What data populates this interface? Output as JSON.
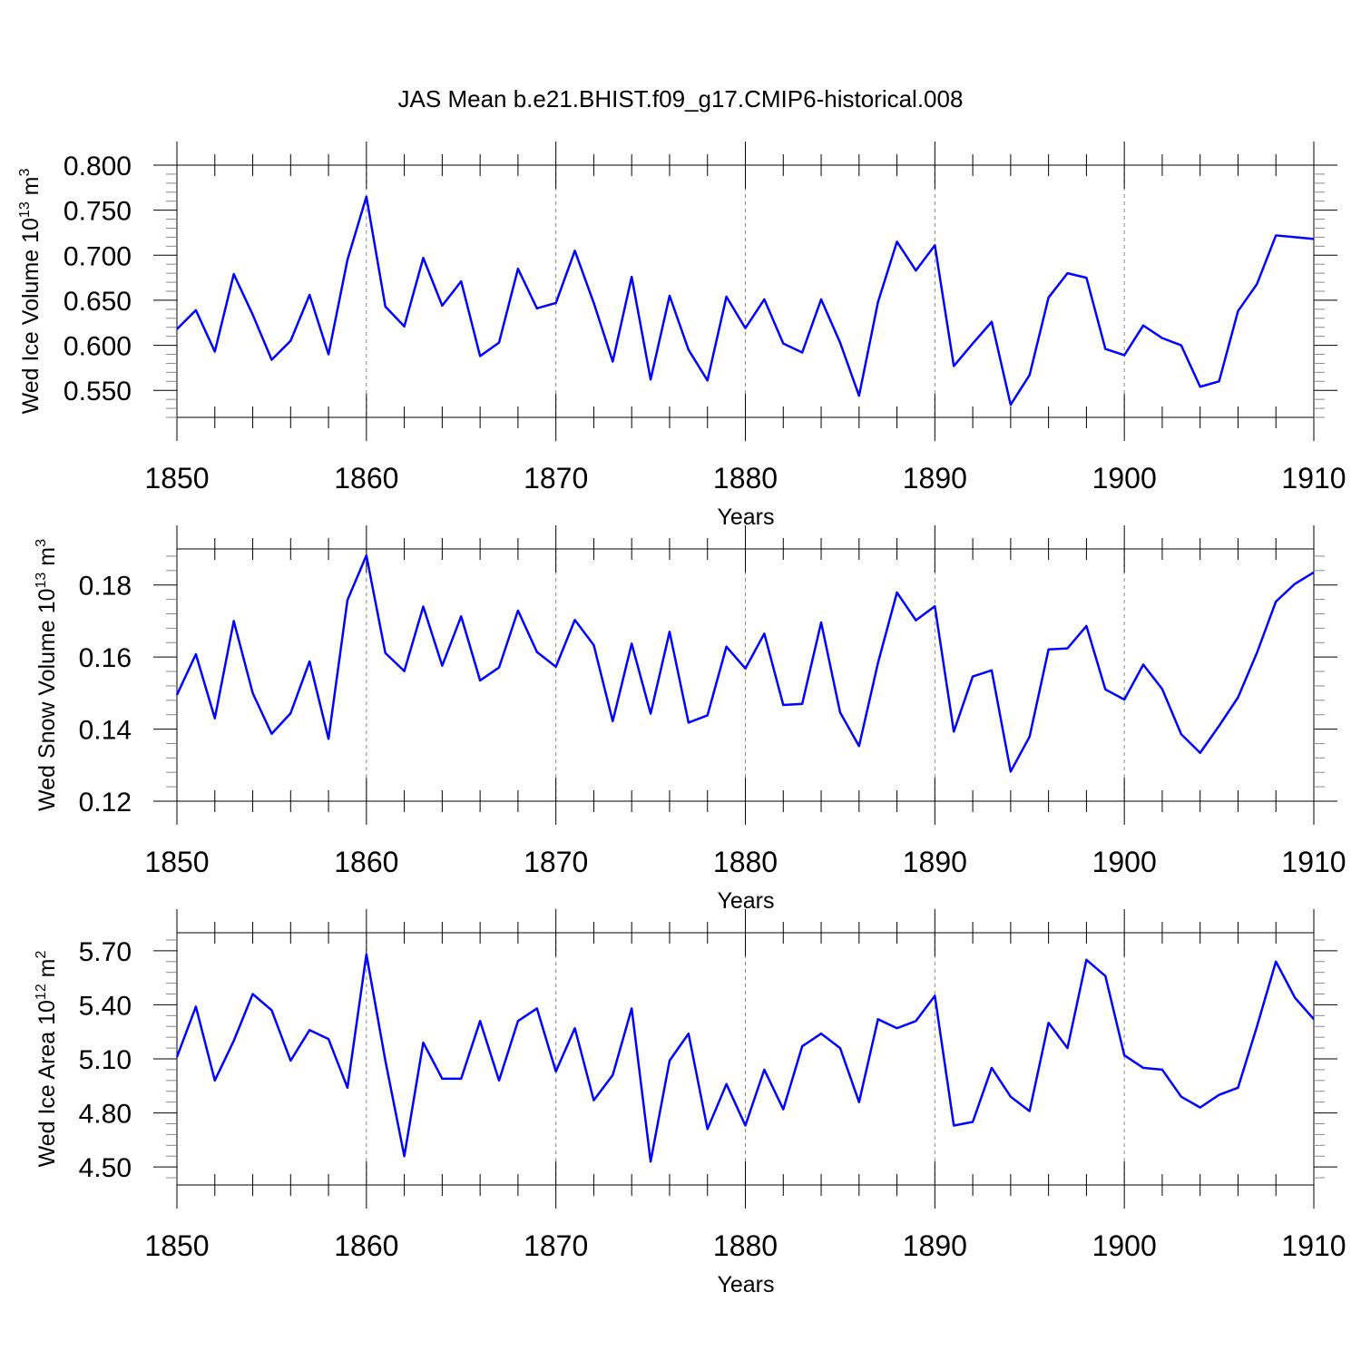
{
  "title": "JAS Mean b.e21.BHIST.f09_g17.CMIP6-historical.008",
  "colors": {
    "line": "#0000ff",
    "axis": "#000000",
    "grid": "#888888"
  },
  "chart_data": [
    {
      "type": "line",
      "ylabel_main": "Wed Ice Volume 10",
      "ylabel_exp": "13",
      "ylabel_unit": " m",
      "ylabel_unit_exp": "3",
      "xlabel": "Years",
      "xlim": [
        1850,
        1910
      ],
      "ylim": [
        0.52,
        0.8
      ],
      "yticks": [
        0.55,
        0.6,
        0.65,
        0.7,
        0.75,
        0.8
      ],
      "ytick_labels": [
        "0.550",
        "0.600",
        "0.650",
        "0.700",
        "0.750",
        "0.800"
      ],
      "xticks": [
        1850,
        1860,
        1870,
        1880,
        1890,
        1900,
        1910
      ],
      "xtick_labels": [
        "1850",
        "1860",
        "1870",
        "1880",
        "1890",
        "1900",
        "1910"
      ],
      "start_year": 1850,
      "values": [
        0.618,
        0.639,
        0.593,
        0.679,
        0.634,
        0.584,
        0.605,
        0.656,
        0.59,
        0.695,
        0.765,
        0.643,
        0.621,
        0.697,
        0.644,
        0.671,
        0.588,
        0.603,
        0.685,
        0.641,
        0.647,
        0.705,
        0.647,
        0.582,
        0.676,
        0.562,
        0.655,
        0.595,
        0.561,
        0.654,
        0.619,
        0.651,
        0.602,
        0.592,
        0.651,
        0.603,
        0.544,
        0.648,
        0.715,
        0.683,
        0.711,
        0.577,
        0.602,
        0.626,
        0.534,
        0.567,
        0.653,
        0.68,
        0.675,
        0.596,
        0.589,
        0.622,
        0.608,
        0.6,
        0.554,
        0.56,
        0.638,
        0.668,
        0.722,
        0.72,
        0.718
      ]
    },
    {
      "type": "line",
      "ylabel_main": "Wed Snow Volume 10",
      "ylabel_exp": "13",
      "ylabel_unit": " m",
      "ylabel_unit_exp": "3",
      "xlabel": "Years",
      "xlim": [
        1850,
        1910
      ],
      "ylim": [
        0.12,
        0.19
      ],
      "yticks": [
        0.12,
        0.14,
        0.16,
        0.18
      ],
      "ytick_labels": [
        "0.12",
        "0.14",
        "0.16",
        "0.18"
      ],
      "xticks": [
        1850,
        1860,
        1870,
        1880,
        1890,
        1900,
        1910
      ],
      "xtick_labels": [
        "1850",
        "1860",
        "1870",
        "1880",
        "1890",
        "1900",
        "1910"
      ],
      "start_year": 1850,
      "values": [
        0.1495,
        0.1608,
        0.143,
        0.17,
        0.15,
        0.1387,
        0.1444,
        0.1588,
        0.1373,
        0.1758,
        0.1882,
        0.1611,
        0.1561,
        0.174,
        0.1576,
        0.1713,
        0.1535,
        0.1571,
        0.1729,
        0.1614,
        0.1573,
        0.1703,
        0.1633,
        0.1422,
        0.1637,
        0.1443,
        0.167,
        0.1418,
        0.1438,
        0.1629,
        0.1568,
        0.1665,
        0.1467,
        0.147,
        0.1696,
        0.1446,
        0.1353,
        0.1584,
        0.1779,
        0.1702,
        0.1741,
        0.1393,
        0.1546,
        0.1563,
        0.1282,
        0.1379,
        0.1621,
        0.1624,
        0.1686,
        0.151,
        0.1482,
        0.1579,
        0.1511,
        0.1386,
        0.1334,
        0.1409,
        0.1488,
        0.1612,
        0.1754,
        0.1803,
        0.1835
      ]
    },
    {
      "type": "line",
      "ylabel_main": "Wed Ice Area 10",
      "ylabel_exp": "12",
      "ylabel_unit": " m",
      "ylabel_unit_exp": "2",
      "xlabel": "Years",
      "xlim": [
        1850,
        1910
      ],
      "ylim": [
        4.4,
        5.8
      ],
      "yticks": [
        4.5,
        4.8,
        5.1,
        5.4,
        5.7
      ],
      "ytick_labels": [
        "4.50",
        "4.80",
        "5.10",
        "5.40",
        "5.70"
      ],
      "xticks": [
        1850,
        1860,
        1870,
        1880,
        1890,
        1900,
        1910
      ],
      "xtick_labels": [
        "1850",
        "1860",
        "1870",
        "1880",
        "1890",
        "1900",
        "1910"
      ],
      "start_year": 1850,
      "values": [
        5.11,
        5.39,
        4.98,
        5.2,
        5.46,
        5.37,
        5.09,
        5.26,
        5.21,
        4.94,
        5.68,
        5.09,
        4.56,
        5.19,
        4.99,
        4.99,
        5.31,
        4.98,
        5.31,
        5.38,
        5.03,
        5.27,
        4.87,
        5.01,
        5.38,
        4.53,
        5.09,
        5.24,
        4.71,
        4.96,
        4.73,
        5.04,
        4.82,
        5.17,
        5.24,
        5.16,
        4.86,
        5.32,
        5.27,
        5.31,
        5.45,
        4.73,
        4.75,
        5.05,
        4.89,
        4.81,
        5.3,
        5.16,
        5.65,
        5.56,
        5.12,
        5.05,
        5.04,
        4.89,
        4.83,
        4.9,
        4.94,
        5.28,
        5.64,
        5.44,
        5.32
      ]
    }
  ]
}
